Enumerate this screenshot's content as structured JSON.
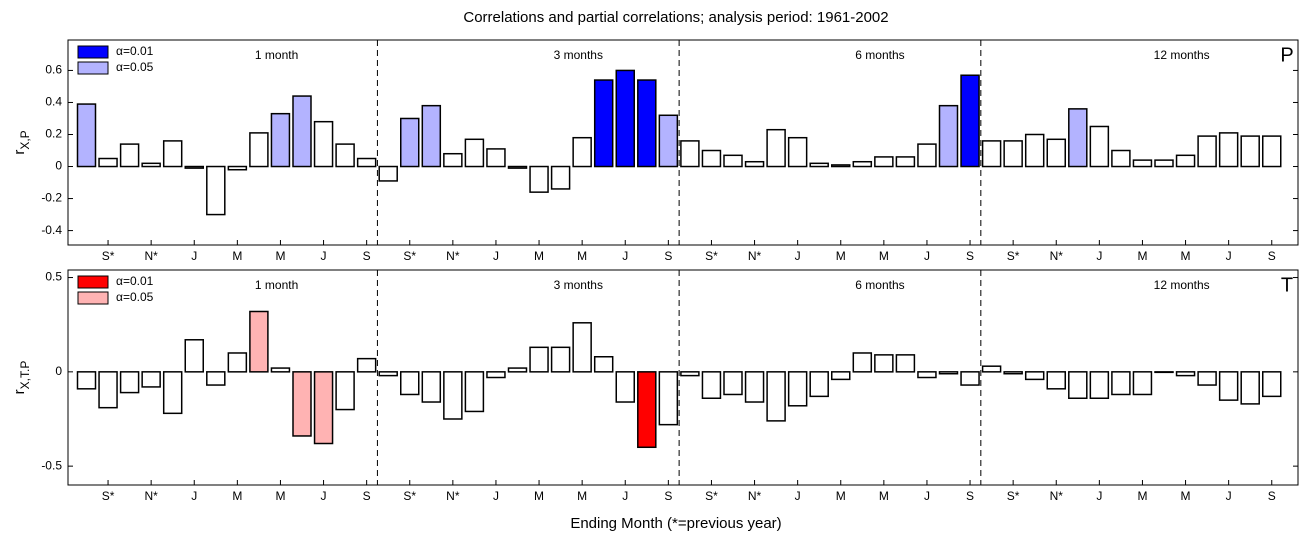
{
  "title": "Correlations and partial correlations; analysis period: 1961-2002",
  "x_label": "Ending Month (*=previous year)",
  "chart_data": [
    {
      "type": "bar",
      "panel_label": "P",
      "y_label": "r",
      "y_label_subscript": "X,P",
      "group_labels": [
        "1 month",
        "3 months",
        "6 months",
        "12 months"
      ],
      "categories": [
        null,
        "S*",
        null,
        "N*",
        null,
        "J",
        null,
        "M",
        null,
        "M",
        null,
        "J",
        null,
        "S",
        null,
        "S*",
        null,
        "N*",
        null,
        "J",
        null,
        "M",
        null,
        "M",
        null,
        "J",
        null,
        "S",
        null,
        "S*",
        null,
        "N*",
        null,
        "J",
        null,
        "M",
        null,
        "M",
        null,
        "J",
        null,
        "S",
        null,
        "S*",
        null,
        "N*",
        null,
        "J",
        null,
        "M",
        null,
        "M",
        null,
        "J",
        null,
        "S"
      ],
      "values": [
        0.39,
        0.05,
        0.14,
        0.02,
        0.16,
        -0.01,
        -0.3,
        -0.02,
        0.21,
        0.33,
        0.44,
        0.28,
        0.14,
        0.05,
        -0.09,
        0.3,
        0.38,
        0.08,
        0.17,
        0.11,
        -0.01,
        -0.16,
        -0.14,
        0.18,
        0.54,
        0.6,
        0.54,
        0.32,
        0.16,
        0.1,
        0.07,
        0.03,
        0.23,
        0.18,
        0.02,
        0.01,
        0.03,
        0.06,
        0.06,
        0.14,
        0.38,
        0.57,
        0.16,
        0.16,
        0.2,
        0.17,
        0.36,
        0.25,
        0.1,
        0.04,
        0.04,
        0.07,
        0.19,
        0.21,
        0.19,
        0.19
      ],
      "colors": [
        "#b3b3ff",
        "#ffffff",
        "#ffffff",
        "#ffffff",
        "#ffffff",
        "#ffffff",
        "#ffffff",
        "#ffffff",
        "#ffffff",
        "#b3b3ff",
        "#b3b3ff",
        "#ffffff",
        "#ffffff",
        "#ffffff",
        "#ffffff",
        "#b3b3ff",
        "#b3b3ff",
        "#ffffff",
        "#ffffff",
        "#ffffff",
        "#ffffff",
        "#ffffff",
        "#ffffff",
        "#ffffff",
        "#0000ff",
        "#0000ff",
        "#0000ff",
        "#b3b3ff",
        "#ffffff",
        "#ffffff",
        "#ffffff",
        "#ffffff",
        "#ffffff",
        "#ffffff",
        "#ffffff",
        "#ffffff",
        "#ffffff",
        "#ffffff",
        "#ffffff",
        "#ffffff",
        "#b3b3ff",
        "#0000ff",
        "#ffffff",
        "#ffffff",
        "#ffffff",
        "#ffffff",
        "#b3b3ff",
        "#ffffff",
        "#ffffff",
        "#ffffff",
        "#ffffff",
        "#ffffff",
        "#ffffff",
        "#ffffff",
        "#ffffff",
        "#ffffff"
      ],
      "legend": [
        {
          "label": "α=0.01",
          "color": "#0000ff"
        },
        {
          "label": "α=0.05",
          "color": "#b3b3ff"
        }
      ],
      "ylim": [
        -0.49,
        0.79
      ],
      "yticks": [
        -0.4,
        -0.2,
        0,
        0.2,
        0.4,
        0.6
      ]
    },
    {
      "type": "bar",
      "panel_label": "T",
      "y_label": "r",
      "y_label_subscript": "X,T.P",
      "group_labels": [
        "1 month",
        "3 months",
        "6 months",
        "12 months"
      ],
      "categories": [
        null,
        "S*",
        null,
        "N*",
        null,
        "J",
        null,
        "M",
        null,
        "M",
        null,
        "J",
        null,
        "S",
        null,
        "S*",
        null,
        "N*",
        null,
        "J",
        null,
        "M",
        null,
        "M",
        null,
        "J",
        null,
        "S",
        null,
        "S*",
        null,
        "N*",
        null,
        "J",
        null,
        "M",
        null,
        "M",
        null,
        "J",
        null,
        "S",
        null,
        "S*",
        null,
        "N*",
        null,
        "J",
        null,
        "M",
        null,
        "M",
        null,
        "J",
        null,
        "S"
      ],
      "values": [
        -0.09,
        -0.19,
        -0.11,
        -0.08,
        -0.22,
        0.17,
        -0.07,
        0.1,
        0.32,
        0.02,
        -0.34,
        -0.38,
        -0.2,
        0.07,
        -0.02,
        -0.12,
        -0.16,
        -0.25,
        -0.21,
        -0.03,
        0.02,
        0.13,
        0.13,
        0.26,
        0.08,
        -0.16,
        -0.4,
        -0.28,
        -0.02,
        -0.14,
        -0.12,
        -0.16,
        -0.26,
        -0.18,
        -0.13,
        -0.04,
        0.1,
        0.09,
        0.09,
        -0.03,
        -0.01,
        -0.07,
        0.03,
        -0.01,
        -0.04,
        -0.09,
        -0.14,
        -0.14,
        -0.12,
        -0.12,
        0.0,
        -0.02,
        -0.07,
        -0.15,
        -0.17,
        -0.13
      ],
      "colors": [
        "#ffffff",
        "#ffffff",
        "#ffffff",
        "#ffffff",
        "#ffffff",
        "#ffffff",
        "#ffffff",
        "#ffffff",
        "#ffb3b3",
        "#ffffff",
        "#ffb3b3",
        "#ffb3b3",
        "#ffffff",
        "#ffffff",
        "#ffffff",
        "#ffffff",
        "#ffffff",
        "#ffffff",
        "#ffffff",
        "#ffffff",
        "#ffffff",
        "#ffffff",
        "#ffffff",
        "#ffffff",
        "#ffffff",
        "#ffffff",
        "#ff0000",
        "#ffffff",
        "#ffffff",
        "#ffffff",
        "#ffffff",
        "#ffffff",
        "#ffffff",
        "#ffffff",
        "#ffffff",
        "#ffffff",
        "#ffffff",
        "#ffffff",
        "#ffffff",
        "#ffffff",
        "#ffffff",
        "#ffffff",
        "#ffffff",
        "#ffffff",
        "#ffffff",
        "#ffffff",
        "#ffffff",
        "#ffffff",
        "#ffffff",
        "#ffffff",
        "#ffffff",
        "#ffffff",
        "#ffffff",
        "#ffffff",
        "#ffffff",
        "#ffffff"
      ],
      "legend": [
        {
          "label": "α=0.01",
          "color": "#ff0000"
        },
        {
          "label": "α=0.05",
          "color": "#ffb3b3"
        }
      ],
      "ylim": [
        -0.6,
        0.54
      ],
      "yticks": [
        -0.5,
        0,
        0.5
      ]
    }
  ]
}
